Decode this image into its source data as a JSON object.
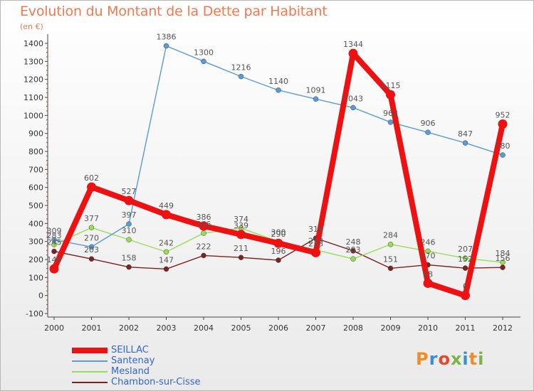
{
  "header": {
    "title": "Evolution du Montant de la Dette par Habitant",
    "unit": "(en €)"
  },
  "logo": {
    "text": "Proxiti",
    "colors": [
      "#f28c28",
      "#3a8fd1",
      "#e8452c",
      "#7cb342",
      "#3a8fd1",
      "#f28c28",
      "#7cb342"
    ]
  },
  "chart_data": {
    "type": "line",
    "x": [
      "2000",
      "2001",
      "2002",
      "2003",
      "2004",
      "2005",
      "2006",
      "2007",
      "2008",
      "2009",
      "2010",
      "2011",
      "2012"
    ],
    "ylim": [
      -100,
      1400
    ],
    "yticks": [
      "-100",
      "0",
      "100",
      "200",
      "300",
      "400",
      "500",
      "600",
      "700",
      "800",
      "900",
      "1000",
      "1100",
      "1200",
      "1300",
      "1400"
    ],
    "grid": false,
    "legend_position": "bottom-left",
    "series": [
      {
        "name": "SEILLAC",
        "color": "#ee1111",
        "values": [
          148,
          602,
          527,
          449,
          386,
          339,
          290,
          238,
          1344,
          1115,
          68,
          0,
          952
        ],
        "labels": [
          "148",
          "602",
          "527",
          "449",
          "386",
          "339",
          "290",
          "238",
          "1344",
          "1115",
          "68",
          "0",
          "952"
        ],
        "segments": [
          [
            0,
            7
          ],
          [
            7,
            12
          ]
        ]
      },
      {
        "name": "Santenay",
        "color": "#5b9bd5",
        "values": [
          309,
          270,
          397,
          1386,
          1300,
          1216,
          1140,
          1091,
          1043,
          962,
          906,
          847,
          780
        ],
        "labels": [
          "309",
          "270",
          "397",
          "1386",
          "1300",
          "1216",
          "1140",
          "1091",
          "1043",
          "962",
          "906",
          "847",
          "780"
        ]
      },
      {
        "name": "Mesland",
        "color": "#99dd55",
        "values": [
          283,
          377,
          310,
          242,
          346,
          374,
          300,
          253,
          203,
          284,
          246,
          207,
          184
        ],
        "labels": [
          "283",
          "377",
          "310",
          "242",
          "346",
          "374",
          "300",
          "253",
          "203",
          "284",
          "246",
          "207",
          "184"
        ]
      },
      {
        "name": "Chambon-sur-Cisse",
        "color": "#7b2222",
        "values": [
          245,
          203,
          158,
          147,
          222,
          211,
          196,
          318,
          248,
          151,
          170,
          152,
          156
        ],
        "labels": [
          "245",
          "203",
          "158",
          "147",
          "222",
          "211",
          "196",
          "318",
          "248",
          "151",
          "170",
          "152",
          "156"
        ]
      }
    ]
  }
}
